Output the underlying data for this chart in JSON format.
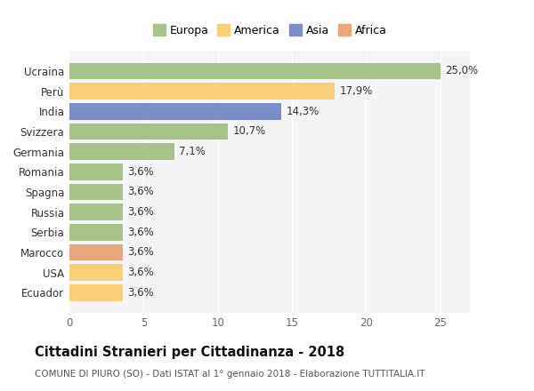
{
  "categories": [
    "Ecuador",
    "USA",
    "Marocco",
    "Serbia",
    "Russia",
    "Spagna",
    "Romania",
    "Germania",
    "Svizzera",
    "India",
    "Perù",
    "Ucraina"
  ],
  "values": [
    3.6,
    3.6,
    3.6,
    3.6,
    3.6,
    3.6,
    3.6,
    7.1,
    10.7,
    14.3,
    17.9,
    25.0
  ],
  "colors": [
    "#f9d077",
    "#f9d077",
    "#e8a87c",
    "#a8c38a",
    "#a8c38a",
    "#a8c38a",
    "#a8c38a",
    "#a8c38a",
    "#a8c38a",
    "#7b8ec8",
    "#f9d077",
    "#a8c38a"
  ],
  "bar_labels": [
    "3,6%",
    "3,6%",
    "3,6%",
    "3,6%",
    "3,6%",
    "3,6%",
    "3,6%",
    "7,1%",
    "10,7%",
    "14,3%",
    "17,9%",
    "25,0%"
  ],
  "xlim": [
    0,
    27
  ],
  "xticks": [
    0,
    5,
    10,
    15,
    20,
    25
  ],
  "legend_labels": [
    "Europa",
    "America",
    "Asia",
    "Africa"
  ],
  "legend_colors": [
    "#a8c38a",
    "#f9d077",
    "#7b8ec8",
    "#e8a87c"
  ],
  "title": "Cittadini Stranieri per Cittadinanza - 2018",
  "subtitle": "COMUNE DI PIURO (SO) - Dati ISTAT al 1° gennaio 2018 - Elaborazione TUTTITALIA.IT",
  "background_color": "#ffffff",
  "plot_bg_color": "#f5f5f8",
  "grid_color": "#ffffff",
  "label_fontsize": 8.5,
  "title_fontsize": 10.5,
  "subtitle_fontsize": 7.5,
  "tick_label_color": "#666666"
}
